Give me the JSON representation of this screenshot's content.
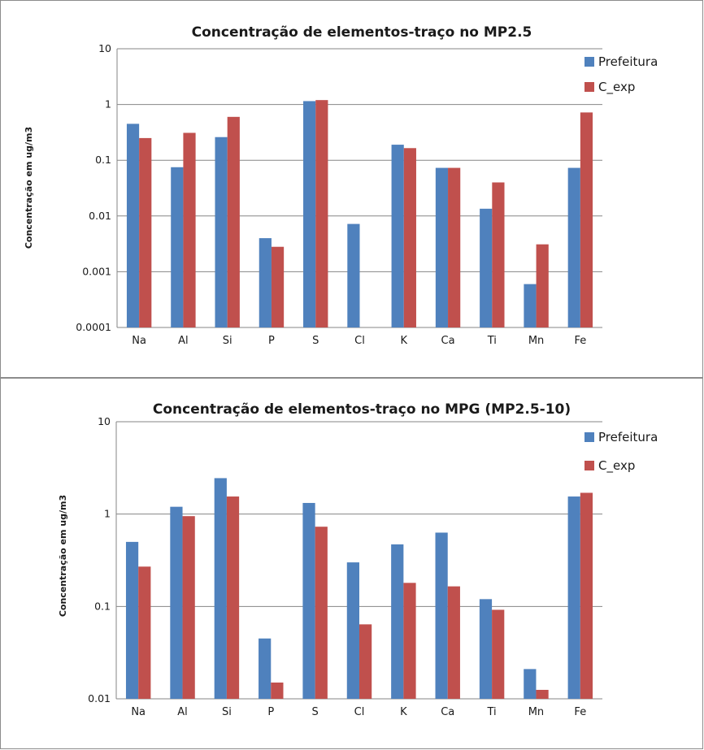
{
  "colors": {
    "Prefeitura": "#4f81bd",
    "C_exp": "#c0504d",
    "grid": "#868686"
  },
  "chart_data": [
    {
      "type": "bar",
      "title": "Concentração de elementos-traço no MP2.5",
      "ylabel": "Concentração em ug/m3",
      "xlabel": "",
      "yscale": "log",
      "ylim": [
        0.0001,
        10
      ],
      "yticks": [
        0.0001,
        0.001,
        0.01,
        0.1,
        1,
        10
      ],
      "ytick_labels": [
        "0.0001",
        "0.001",
        "0.01",
        "0.1",
        "1",
        "10"
      ],
      "grid": true,
      "legend_position": "top-right",
      "categories": [
        "Na",
        "Al",
        "Si",
        "P",
        "S",
        "Cl",
        "K",
        "Ca",
        "Ti",
        "Mn",
        "Fe"
      ],
      "series": [
        {
          "name": "Prefeitura",
          "values": [
            0.45,
            0.075,
            0.26,
            0.004,
            1.15,
            0.0072,
            0.19,
            0.073,
            0.0135,
            0.0006,
            0.073
          ]
        },
        {
          "name": "C_exp",
          "values": [
            0.25,
            0.31,
            0.6,
            0.0028,
            1.2,
            null,
            0.165,
            0.073,
            0.04,
            0.0031,
            0.72
          ]
        }
      ]
    },
    {
      "type": "bar",
      "title": "Concentração de elementos-traço no MPG (MP2.5-10)",
      "ylabel": "Concentração em ug/m3",
      "xlabel": "",
      "yscale": "log",
      "ylim": [
        0.01,
        10
      ],
      "yticks": [
        0.01,
        0.1,
        1,
        10
      ],
      "ytick_labels": [
        "0.01",
        "0.1",
        "1",
        "10"
      ],
      "grid": true,
      "legend_position": "top-right",
      "categories": [
        "Na",
        "Al",
        "Si",
        "P",
        "S",
        "Cl",
        "K",
        "Ca",
        "Ti",
        "Mn",
        "Fe"
      ],
      "series": [
        {
          "name": "Prefeitura",
          "values": [
            0.5,
            1.2,
            2.45,
            0.045,
            1.32,
            0.3,
            0.47,
            0.63,
            0.12,
            0.021,
            1.55
          ]
        },
        {
          "name": "C_exp",
          "values": [
            0.27,
            0.95,
            1.55,
            0.015,
            0.73,
            0.064,
            0.18,
            0.165,
            0.092,
            0.0125,
            1.7
          ]
        }
      ]
    }
  ]
}
